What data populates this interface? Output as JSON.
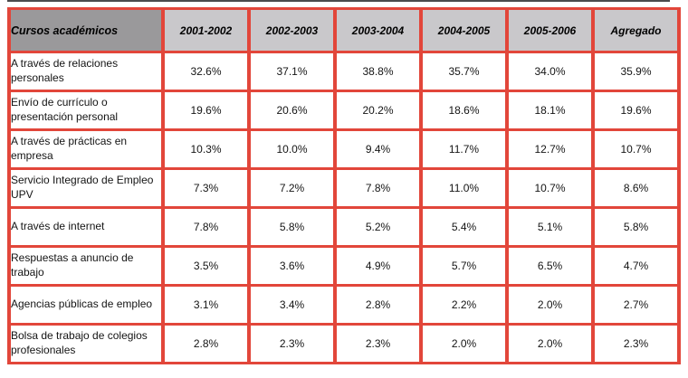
{
  "colors": {
    "border_red": "#e2463a",
    "corner_header_bg": "#9a999b",
    "year_header_bg": "#c9c8cb",
    "top_rule": "#4b4b4d",
    "text": "#000000"
  },
  "table": {
    "corner_header": "Cursos académicos",
    "column_headers": [
      "2001-2002",
      "2002-2003",
      "2003-2004",
      "2004-2005",
      "2005-2006",
      "Agregado"
    ],
    "rows": [
      {
        "label": "A través de relaciones personales",
        "values": [
          "32.6%",
          "37.1%",
          "38.8%",
          "35.7%",
          "34.0%",
          "35.9%"
        ]
      },
      {
        "label": "Envío de currículo o presentación personal",
        "values": [
          "19.6%",
          "20.6%",
          "20.2%",
          "18.6%",
          "18.1%",
          "19.6%"
        ]
      },
      {
        "label": "A través de prácticas en empresa",
        "values": [
          "10.3%",
          "10.0%",
          "9.4%",
          "11.7%",
          "12.7%",
          "10.7%"
        ]
      },
      {
        "label": "Servicio Integrado de Empleo UPV",
        "values": [
          "7.3%",
          "7.2%",
          "7.8%",
          "11.0%",
          "10.7%",
          "8.6%"
        ]
      },
      {
        "label": "A través de internet",
        "values": [
          "7.8%",
          "5.8%",
          "5.2%",
          "5.4%",
          "5.1%",
          "5.8%"
        ]
      },
      {
        "label": "Respuestas a anuncio de trabajo",
        "values": [
          "3.5%",
          "3.6%",
          "4.9%",
          "5.7%",
          "6.5%",
          "4.7%"
        ]
      },
      {
        "label": "Agencias públicas de empleo",
        "values": [
          "3.1%",
          "3.4%",
          "2.8%",
          "2.2%",
          "2.0%",
          "2.7%"
        ]
      },
      {
        "label": "Bolsa de trabajo de colegios profesionales",
        "values": [
          "2.8%",
          "2.3%",
          "2.3%",
          "2.0%",
          "2.0%",
          "2.3%"
        ]
      }
    ]
  },
  "chart_data": {
    "type": "table",
    "title": "",
    "corner_label": "Cursos académicos",
    "columns": [
      "2001-2002",
      "2002-2003",
      "2003-2004",
      "2004-2005",
      "2005-2006",
      "Agregado"
    ],
    "unit": "percent",
    "rows": [
      {
        "label": "A través de relaciones personales",
        "values": [
          32.6,
          37.1,
          38.8,
          35.7,
          34.0,
          35.9
        ]
      },
      {
        "label": "Envío de currículo o presentación personal",
        "values": [
          19.6,
          20.6,
          20.2,
          18.6,
          18.1,
          19.6
        ]
      },
      {
        "label": "A través de prácticas en empresa",
        "values": [
          10.3,
          10.0,
          9.4,
          11.7,
          12.7,
          10.7
        ]
      },
      {
        "label": "Servicio Integrado de Empleo UPV",
        "values": [
          7.3,
          7.2,
          7.8,
          11.0,
          10.7,
          8.6
        ]
      },
      {
        "label": "A través de internet",
        "values": [
          7.8,
          5.8,
          5.2,
          5.4,
          5.1,
          5.8
        ]
      },
      {
        "label": "Respuestas a anuncio de trabajo",
        "values": [
          3.5,
          3.6,
          4.9,
          5.7,
          6.5,
          4.7
        ]
      },
      {
        "label": "Agencias públicas de empleo",
        "values": [
          3.1,
          3.4,
          2.8,
          2.2,
          2.0,
          2.7
        ]
      },
      {
        "label": "Bolsa de trabajo de colegios profesionales",
        "values": [
          2.8,
          2.3,
          2.3,
          2.0,
          2.0,
          2.3
        ]
      }
    ]
  }
}
